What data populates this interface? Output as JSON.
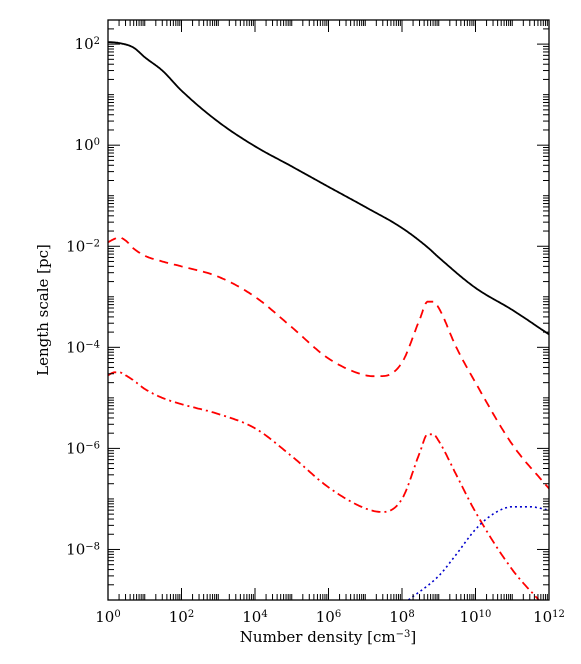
{
  "chart_data": {
    "type": "line",
    "xlabel": "Number density [cm",
    "xlabel_exp": "−3",
    "xlabel_end": "]",
    "ylabel": "Length scale [pc]",
    "x_scale": "log",
    "y_scale": "log",
    "xlim": [
      1,
      1000000000000.0
    ],
    "ylim": [
      1e-09,
      300
    ],
    "grid": false,
    "x_ticks": [
      {
        "base": "10",
        "exp": "0",
        "value": 1
      },
      {
        "base": "10",
        "exp": "2",
        "value": 100
      },
      {
        "base": "10",
        "exp": "4",
        "value": 10000
      },
      {
        "base": "10",
        "exp": "6",
        "value": 1000000
      },
      {
        "base": "10",
        "exp": "8",
        "value": 100000000
      },
      {
        "base": "10",
        "exp": "10",
        "value": 10000000000
      },
      {
        "base": "10",
        "exp": "12",
        "value": 1000000000000
      }
    ],
    "y_ticks": [
      {
        "base": "10",
        "exp": "2",
        "value": 100
      },
      {
        "base": "10",
        "exp": "0",
        "value": 1
      },
      {
        "base": "10",
        "exp": "−2",
        "value": 0.01
      },
      {
        "base": "10",
        "exp": "−4",
        "value": 0.0001
      },
      {
        "base": "10",
        "exp": "−6",
        "value": 1e-06
      },
      {
        "base": "10",
        "exp": "−8",
        "value": 1e-08
      }
    ],
    "series": [
      {
        "color": "#000000",
        "style": "solid",
        "x": [
          1,
          2,
          5,
          10,
          30,
          100,
          1000,
          10000,
          100000,
          1000000,
          10000000,
          100000000,
          500000000,
          1000000000,
          10000000000,
          100000000000,
          1000000000000
        ],
        "y": [
          110,
          105,
          85,
          55,
          30,
          12,
          2.9,
          0.95,
          0.38,
          0.15,
          0.06,
          0.023,
          0.0095,
          0.006,
          0.0015,
          0.00055,
          0.00018
        ]
      },
      {
        "color": "#ff0000",
        "style": "dashed",
        "x": [
          1,
          1.5,
          2,
          3,
          5,
          10,
          30,
          100,
          1000,
          10000,
          100000,
          1000000,
          10000000,
          30000000,
          100000000,
          300000000,
          500000000,
          700000000,
          1000000000,
          3000000000,
          10000000000,
          100000000000,
          1000000000000
        ],
        "y": [
          0.012,
          0.014,
          0.015,
          0.013,
          0.009,
          0.0065,
          0.005,
          0.004,
          0.0025,
          0.001,
          0.00025,
          6e-05,
          2.8e-05,
          2.7e-05,
          5e-05,
          0.00035,
          0.0008,
          0.0008,
          0.0006,
          0.0001,
          2e-05,
          1.2e-06,
          1.6e-07
        ]
      },
      {
        "color": "#ff0000",
        "style": "dash-dot",
        "x": [
          1,
          1.5,
          2,
          3,
          5,
          10,
          30,
          100,
          1000,
          10000,
          100000,
          1000000,
          10000000,
          30000000,
          100000000,
          300000000,
          500000000,
          700000000,
          1000000000,
          3000000000,
          10000000000,
          100000000000,
          700000000000
        ],
        "y": [
          2.8e-05,
          3.2e-05,
          3.2e-05,
          2.8e-05,
          2.2e-05,
          1.5e-05,
          1e-05,
          7.5e-06,
          4.8e-06,
          2.5e-06,
          7e-07,
          1.7e-07,
          6.5e-08,
          5.5e-08,
          1e-07,
          8e-07,
          1.9e-06,
          1.9e-06,
          1.4e-06,
          3e-07,
          5.5e-08,
          4e-09,
          8e-10
        ]
      },
      {
        "color": "#0000cc",
        "style": "dotted",
        "x": [
          150000000,
          1000000000,
          3000000000,
          10000000000,
          30000000000,
          100000000000,
          300000000000,
          1000000000000
        ],
        "y": [
          1e-09,
          3e-09,
          8e-09,
          2.5e-08,
          5e-08,
          7e-08,
          7e-08,
          6e-08
        ]
      }
    ]
  }
}
